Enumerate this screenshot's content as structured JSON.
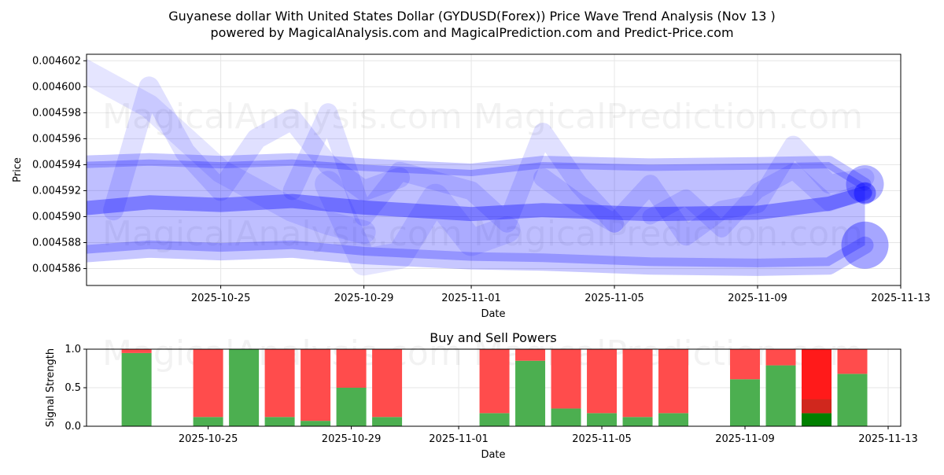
{
  "title_line1": "Guyanese dollar With United States Dollar (GYDUSD(Forex)) Price Wave Trend Analysis (Nov 13 )",
  "title_line2": "powered by MagicalAnalysis.com and MagicalPrediction.com and Predict-Price.com",
  "watermarks": [
    "MagicalAnalysis.com",
    "MagicalPrediction.com"
  ],
  "colors": {
    "band": "#0000ff",
    "buy": "#4caf50",
    "sell": "#ff4c4c",
    "sell_strong": "#ff1a1a",
    "buy_strong": "#008000",
    "grid": "#e6e6e6"
  },
  "chart_data": [
    {
      "type": "area",
      "title": "",
      "xlabel": "Date",
      "ylabel": "Price",
      "xlim": [
        "2025-10-21",
        "2025-11-13"
      ],
      "ylim": [
        0.0045847,
        0.0046025
      ],
      "yticks": [
        0.004586,
        0.004588,
        0.00459,
        0.004592,
        0.004594,
        0.004596,
        0.004598,
        0.0046,
        0.004602
      ],
      "ytick_labels": [
        "0.004586",
        "0.004588",
        "0.004590",
        "0.004592",
        "0.004594",
        "0.004596",
        "0.004598",
        "0.004600",
        "0.004602"
      ],
      "xticks": [
        "2025-10-25",
        "2025-10-29",
        "2025-11-01",
        "2025-11-05",
        "2025-11-09",
        "2025-11-13"
      ],
      "grid": true,
      "series": [
        {
          "name": "upper band",
          "x": [
            "2025-10-21",
            "2025-10-23",
            "2025-10-25",
            "2025-10-27",
            "2025-10-29",
            "2025-11-01",
            "2025-11-03",
            "2025-11-06",
            "2025-11-09",
            "2025-11-11",
            "2025-11-12"
          ],
          "y": [
            0.0045942,
            0.0045944,
            0.0045942,
            0.0045944,
            0.004594,
            0.0045936,
            0.0045942,
            0.004594,
            0.0045941,
            0.0045942,
            0.0045925
          ]
        },
        {
          "name": "mid line",
          "x": [
            "2025-10-21",
            "2025-10-23",
            "2025-10-25",
            "2025-10-27",
            "2025-10-29",
            "2025-11-01",
            "2025-11-03",
            "2025-11-06",
            "2025-11-09",
            "2025-11-11",
            "2025-11-12"
          ],
          "y": [
            0.0045906,
            0.0045911,
            0.0045909,
            0.0045912,
            0.0045907,
            0.0045902,
            0.0045905,
            0.0045902,
            0.0045903,
            0.004591,
            0.0045918
          ]
        },
        {
          "name": "lower band",
          "x": [
            "2025-10-21",
            "2025-10-23",
            "2025-10-25",
            "2025-10-27",
            "2025-10-29",
            "2025-11-01",
            "2025-11-03",
            "2025-11-06",
            "2025-11-09",
            "2025-11-11",
            "2025-11-12"
          ],
          "y": [
            0.0045871,
            0.0045875,
            0.0045873,
            0.0045875,
            0.004587,
            0.0045866,
            0.0045865,
            0.0045862,
            0.0045861,
            0.0045862,
            0.0045878
          ]
        },
        {
          "name": "wave 1",
          "x": [
            "2025-10-21",
            "2025-10-22",
            "2025-10-23",
            "2025-10-24",
            "2025-10-25",
            "2025-10-26",
            "2025-10-27",
            "2025-10-28",
            "2025-10-29"
          ],
          "y": [
            0.0046015,
            0.0046,
            0.0045985,
            0.004596,
            0.0045935,
            0.004592,
            0.0045905,
            0.0045895,
            0.0045888
          ]
        },
        {
          "name": "wave 2",
          "x": [
            "2025-10-22",
            "2025-10-23",
            "2025-10-24",
            "2025-10-25",
            "2025-10-26",
            "2025-10-27",
            "2025-10-28",
            "2025-10-29",
            "2025-10-30"
          ],
          "y": [
            0.0045905,
            0.0046,
            0.004595,
            0.004592,
            0.004596,
            0.0045975,
            0.004594,
            0.004592,
            0.004593
          ]
        },
        {
          "name": "wave 3",
          "x": [
            "2025-10-27",
            "2025-10-28",
            "2025-10-29",
            "2025-10-30",
            "2025-11-01",
            "2025-11-02",
            "2025-11-03",
            "2025-11-04",
            "2025-11-05"
          ],
          "y": [
            0.004592,
            0.004598,
            0.00459,
            0.0045935,
            0.004592,
            0.0045895,
            0.0045965,
            0.0045925,
            0.0045895
          ]
        },
        {
          "name": "wave 4",
          "x": [
            "2025-10-28",
            "2025-10-29",
            "2025-10-30",
            "2025-10-31",
            "2025-11-01",
            "2025-11-02"
          ],
          "y": [
            0.0045925,
            0.0045865,
            0.004587,
            0.0045915,
            0.004588,
            0.004589
          ]
        },
        {
          "name": "wave 5",
          "x": [
            "2025-11-03",
            "2025-11-04",
            "2025-11-05",
            "2025-11-06",
            "2025-11-07",
            "2025-11-08",
            "2025-11-09",
            "2025-11-10",
            "2025-11-11",
            "2025-11-12"
          ],
          "y": [
            0.004593,
            0.004591,
            0.0045895,
            0.0045925,
            0.0045885,
            0.0045905,
            0.004591,
            0.0045955,
            0.0045925,
            0.004593
          ]
        },
        {
          "name": "wave 6",
          "x": [
            "2025-11-06",
            "2025-11-07",
            "2025-11-08",
            "2025-11-09",
            "2025-11-10",
            "2025-11-11",
            "2025-11-12"
          ],
          "y": [
            0.00459,
            0.0045915,
            0.004589,
            0.004592,
            0.0045935,
            0.004591,
            0.004592
          ]
        }
      ]
    },
    {
      "type": "bar",
      "title": "Buy and Sell Powers",
      "xlabel": "Date",
      "ylabel": "Signal Strength",
      "ylim": [
        0,
        1.0
      ],
      "yticks": [
        0.0,
        0.5,
        1.0
      ],
      "ytick_labels": [
        "0.0",
        "0.5",
        "1.0"
      ],
      "xticks": [
        "2025-10-25",
        "2025-10-29",
        "2025-11-01",
        "2025-11-05",
        "2025-11-09",
        "2025-11-13"
      ],
      "xlim": [
        "2025-10-21",
        "2025-11-13"
      ],
      "grid": true,
      "dates": [
        "2025-10-23",
        "2025-10-25",
        "2025-10-26",
        "2025-10-27",
        "2025-10-28",
        "2025-10-29",
        "2025-10-30",
        "2025-11-02",
        "2025-11-03",
        "2025-11-04",
        "2025-11-05",
        "2025-11-06",
        "2025-11-07",
        "2025-11-09",
        "2025-11-10",
        "2025-11-11",
        "2025-11-12"
      ],
      "buy": [
        0.95,
        0.12,
        1.0,
        0.12,
        0.07,
        0.5,
        0.12,
        0.17,
        0.85,
        0.23,
        0.17,
        0.12,
        0.17,
        0.61,
        0.79,
        0.17,
        0.68
      ],
      "sell": [
        0.05,
        0.88,
        0.0,
        0.88,
        0.93,
        0.5,
        0.88,
        0.83,
        0.15,
        0.77,
        0.83,
        0.88,
        0.83,
        0.39,
        0.21,
        0.83,
        0.32
      ],
      "highlight_date": "2025-11-11"
    }
  ]
}
